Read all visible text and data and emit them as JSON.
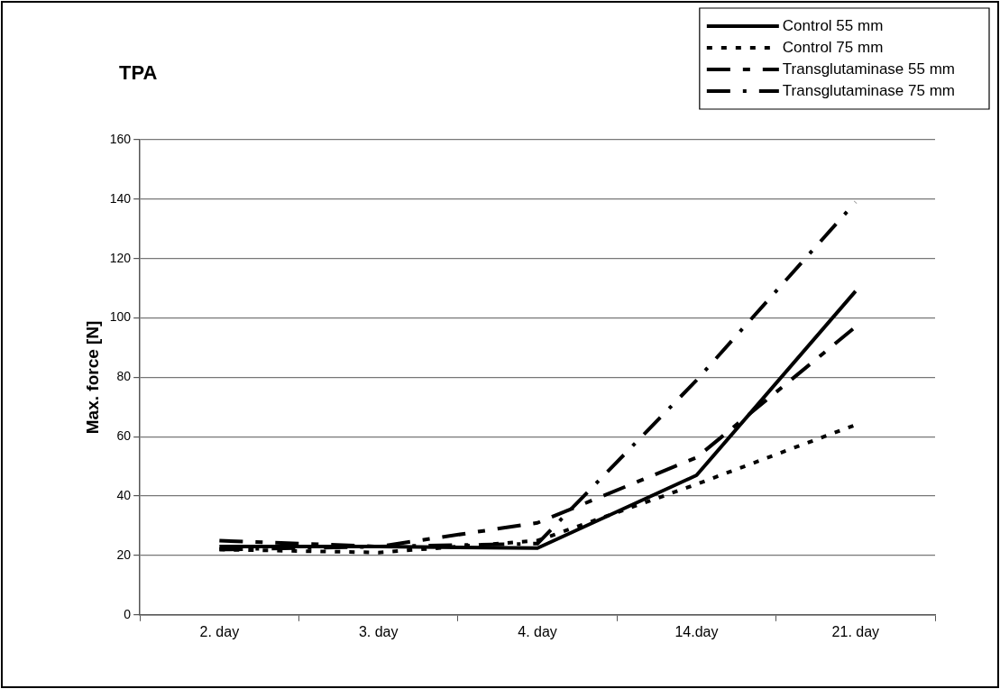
{
  "chart_data": {
    "type": "line",
    "title": "TPA",
    "ylabel": "Max. force [N]",
    "categories": [
      "2. day",
      "3. day",
      "4. day",
      "14.day",
      "21. day"
    ],
    "series": [
      {
        "name": "Control 55 mm",
        "color": "#000000",
        "line_style": "solid",
        "values": [
          23,
          23,
          22.5,
          47,
          109
        ]
      },
      {
        "name": "Control 75 mm",
        "color": "#000000",
        "line_style": "dotted",
        "values": [
          22,
          21,
          25,
          44,
          64
        ]
      },
      {
        "name": "Transglutaminase 55 mm",
        "color": "#000000",
        "line_style": "dashed",
        "values": [
          25,
          23,
          31,
          53,
          97
        ]
      },
      {
        "name": "Transglutaminase 75 mm",
        "color": "#000000",
        "line_style": "dashed",
        "values": [
          22,
          23,
          24,
          79,
          139
        ]
      }
    ],
    "ylim": [
      0,
      160
    ],
    "yticks": [
      0,
      20,
      40,
      60,
      80,
      100,
      120,
      140,
      160
    ],
    "grid": "y",
    "legend": "top right",
    "marker": "none"
  }
}
